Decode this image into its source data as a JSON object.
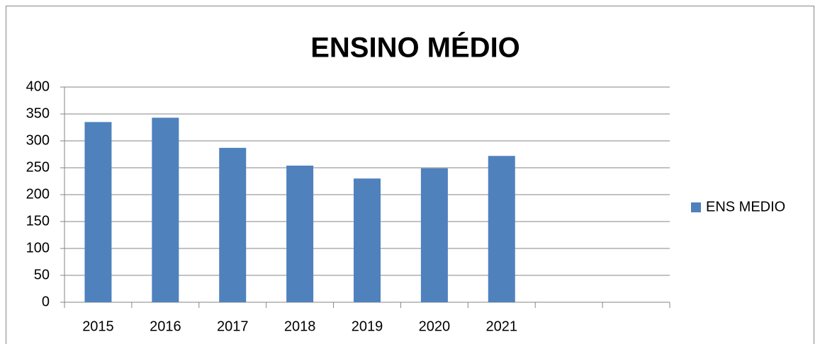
{
  "chart_data": {
    "type": "bar",
    "title": "ENSINO MÉDIO",
    "categories": [
      "2015",
      "2016",
      "2017",
      "2018",
      "2019",
      "2020",
      "2021",
      null,
      null
    ],
    "series": [
      {
        "name": "ENS MEDIO",
        "color": "#4f81bd",
        "values": [
          335,
          343,
          287,
          254,
          230,
          249,
          272,
          null,
          null
        ]
      }
    ],
    "ylim": [
      0,
      400
    ],
    "yticks": [
      0,
      50,
      100,
      150,
      200,
      250,
      300,
      350,
      400
    ],
    "grid": true,
    "legend": "right"
  }
}
